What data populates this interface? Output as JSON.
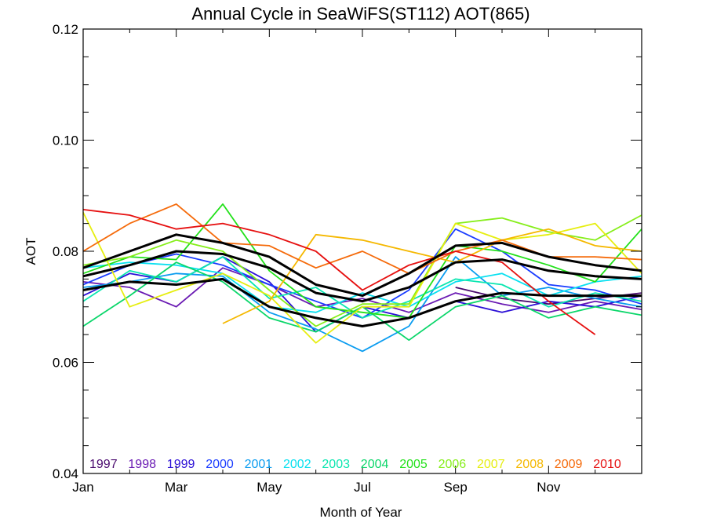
{
  "chart_data": {
    "type": "line",
    "title": "Annual Cycle in SeaWiFS(ST112) AOT(865)",
    "xlabel": "Month of Year",
    "ylabel": "AOT",
    "xlim": [
      1,
      13
    ],
    "ylim": [
      0.04,
      0.12
    ],
    "x_ticks": [
      {
        "value": 1,
        "label": "Jan"
      },
      {
        "value": 3,
        "label": "Mar"
      },
      {
        "value": 5,
        "label": "May"
      },
      {
        "value": 7,
        "label": "Jul"
      },
      {
        "value": 9,
        "label": "Sep"
      },
      {
        "value": 11,
        "label": "Nov"
      }
    ],
    "y_ticks": [
      {
        "value": 0.04,
        "label": "0.04"
      },
      {
        "value": 0.06,
        "label": "0.06"
      },
      {
        "value": 0.08,
        "label": "0.08"
      },
      {
        "value": 0.1,
        "label": "0.10"
      },
      {
        "value": 0.12,
        "label": "0.12"
      }
    ],
    "legend_position": "bottom-inside",
    "grid": false,
    "series": [
      {
        "name": "1997",
        "color": "#4a0a6e",
        "x": [
          9,
          10,
          11,
          12,
          13
        ],
        "values": [
          0.0735,
          0.0715,
          0.0705,
          0.0715,
          0.0725
        ]
      },
      {
        "name": "1998",
        "color": "#6a1ab3",
        "x": [
          1,
          2,
          3,
          4,
          5,
          6,
          7,
          8,
          9,
          10,
          11,
          12,
          13
        ],
        "values": [
          0.0745,
          0.0735,
          0.07,
          0.077,
          0.074,
          0.07,
          0.0715,
          0.069,
          0.0725,
          0.0705,
          0.069,
          0.071,
          0.0695
        ]
      },
      {
        "name": "1999",
        "color": "#2b0fd6",
        "x": [
          1,
          2,
          3,
          4,
          5,
          6,
          7,
          8,
          9,
          10,
          11,
          12,
          13
        ],
        "values": [
          0.072,
          0.076,
          0.0745,
          0.079,
          0.0745,
          0.0655,
          0.07,
          0.068,
          0.071,
          0.069,
          0.071,
          0.07,
          0.072
        ]
      },
      {
        "name": "2000",
        "color": "#1a3cff",
        "x": [
          1,
          2,
          3,
          4,
          5,
          6,
          7,
          8,
          9,
          10,
          11,
          12,
          13
        ],
        "values": [
          0.074,
          0.0775,
          0.0795,
          0.0775,
          0.074,
          0.071,
          0.068,
          0.073,
          0.084,
          0.08,
          0.074,
          0.073,
          0.0705
        ]
      },
      {
        "name": "2001",
        "color": "#0a9cf0",
        "x": [
          1,
          2,
          3,
          4,
          5,
          6,
          7,
          8,
          9,
          10,
          11,
          12,
          13
        ],
        "values": [
          0.0735,
          0.0745,
          0.076,
          0.0755,
          0.069,
          0.066,
          0.062,
          0.0665,
          0.079,
          0.072,
          0.0735,
          0.0715,
          0.07
        ]
      },
      {
        "name": "2002",
        "color": "#08e0f0",
        "x": [
          1,
          2,
          3,
          4,
          5,
          6,
          7,
          8,
          9,
          10,
          11,
          12,
          13
        ],
        "values": [
          0.077,
          0.078,
          0.0775,
          0.076,
          0.07,
          0.069,
          0.0725,
          0.07,
          0.0745,
          0.076,
          0.072,
          0.0745,
          0.0755
        ]
      },
      {
        "name": "2003",
        "color": "#0ae6b0",
        "x": [
          1,
          2,
          3,
          4,
          5,
          6,
          7,
          8,
          9,
          10,
          11,
          12,
          13
        ],
        "values": [
          0.071,
          0.0765,
          0.0745,
          0.079,
          0.0715,
          0.0735,
          0.068,
          0.071,
          0.075,
          0.074,
          0.07,
          0.0725,
          0.071
        ]
      },
      {
        "name": "2004",
        "color": "#0ad66a",
        "x": [
          1,
          2,
          3,
          4,
          5,
          6,
          7,
          8,
          9,
          10,
          11,
          12,
          13
        ],
        "values": [
          0.0665,
          0.072,
          0.078,
          0.0745,
          0.068,
          0.0655,
          0.07,
          0.064,
          0.07,
          0.072,
          0.068,
          0.07,
          0.0685
        ]
      },
      {
        "name": "2005",
        "color": "#22e11a",
        "x": [
          1,
          2,
          3,
          4,
          5,
          6,
          7,
          8,
          9,
          10,
          11,
          12,
          13
        ],
        "values": [
          0.076,
          0.079,
          0.0785,
          0.0885,
          0.0765,
          0.07,
          0.069,
          0.068,
          0.081,
          0.08,
          0.0775,
          0.0745,
          0.084
        ]
      },
      {
        "name": "2006",
        "color": "#86ee1a",
        "x": [
          1,
          2,
          3,
          4,
          5,
          6,
          7,
          8,
          9,
          10,
          11,
          12,
          13
        ],
        "values": [
          0.0775,
          0.079,
          0.082,
          0.08,
          0.073,
          0.0665,
          0.0705,
          0.0705,
          0.085,
          0.086,
          0.0835,
          0.082,
          0.0865
        ]
      },
      {
        "name": "2007",
        "color": "#e6ee10",
        "x": [
          1,
          2,
          3,
          4,
          5,
          6,
          7,
          8,
          9,
          10,
          11,
          12,
          13
        ],
        "values": [
          0.087,
          0.07,
          0.073,
          0.076,
          0.072,
          0.0635,
          0.07,
          0.07,
          0.085,
          0.082,
          0.083,
          0.085,
          0.076
        ]
      },
      {
        "name": "2008",
        "color": "#f5b800",
        "x": [
          4,
          5,
          6,
          7,
          8,
          9,
          10,
          11,
          12,
          13
        ],
        "values": [
          0.067,
          0.071,
          0.083,
          0.082,
          0.08,
          0.078,
          0.082,
          0.084,
          0.081,
          0.08
        ]
      },
      {
        "name": "2009",
        "color": "#f56a0a",
        "x": [
          1,
          2,
          3,
          4,
          5,
          6,
          7,
          8,
          9,
          10,
          11,
          12,
          13
        ],
        "values": [
          0.08,
          0.085,
          0.0885,
          0.0815,
          0.081,
          0.077,
          0.08,
          0.076,
          0.08,
          0.082,
          0.079,
          0.079,
          0.0785
        ]
      },
      {
        "name": "2010",
        "color": "#e61010",
        "x": [
          1,
          2,
          3,
          4,
          5,
          6,
          7,
          8,
          9,
          10,
          11,
          12
        ],
        "values": [
          0.0875,
          0.0865,
          0.084,
          0.085,
          0.083,
          0.08,
          0.073,
          0.0775,
          0.08,
          0.078,
          0.071,
          0.065
        ]
      },
      {
        "name": "",
        "color": "#000000",
        "bold": true,
        "x": [
          1,
          2,
          3,
          4,
          5,
          6,
          7,
          8,
          9,
          10,
          11,
          12,
          13
        ],
        "values": [
          0.077,
          0.08,
          0.083,
          0.0815,
          0.079,
          0.074,
          0.072,
          0.076,
          0.081,
          0.0815,
          0.079,
          0.0775,
          0.0765
        ]
      },
      {
        "name": "",
        "color": "#000000",
        "bold": true,
        "x": [
          1,
          2,
          3,
          4,
          5,
          6,
          7,
          8,
          9,
          10,
          11,
          12,
          13
        ],
        "values": [
          0.0755,
          0.0775,
          0.08,
          0.0795,
          0.077,
          0.0725,
          0.071,
          0.0735,
          0.078,
          0.0785,
          0.0765,
          0.0755,
          0.075
        ]
      },
      {
        "name": "",
        "color": "#000000",
        "bold": true,
        "x": [
          1,
          2,
          3,
          4,
          5,
          6,
          7,
          8,
          9,
          10,
          11,
          12,
          13
        ],
        "values": [
          0.073,
          0.0745,
          0.074,
          0.075,
          0.07,
          0.068,
          0.0665,
          0.068,
          0.071,
          0.0725,
          0.072,
          0.072,
          0.072
        ]
      }
    ]
  }
}
